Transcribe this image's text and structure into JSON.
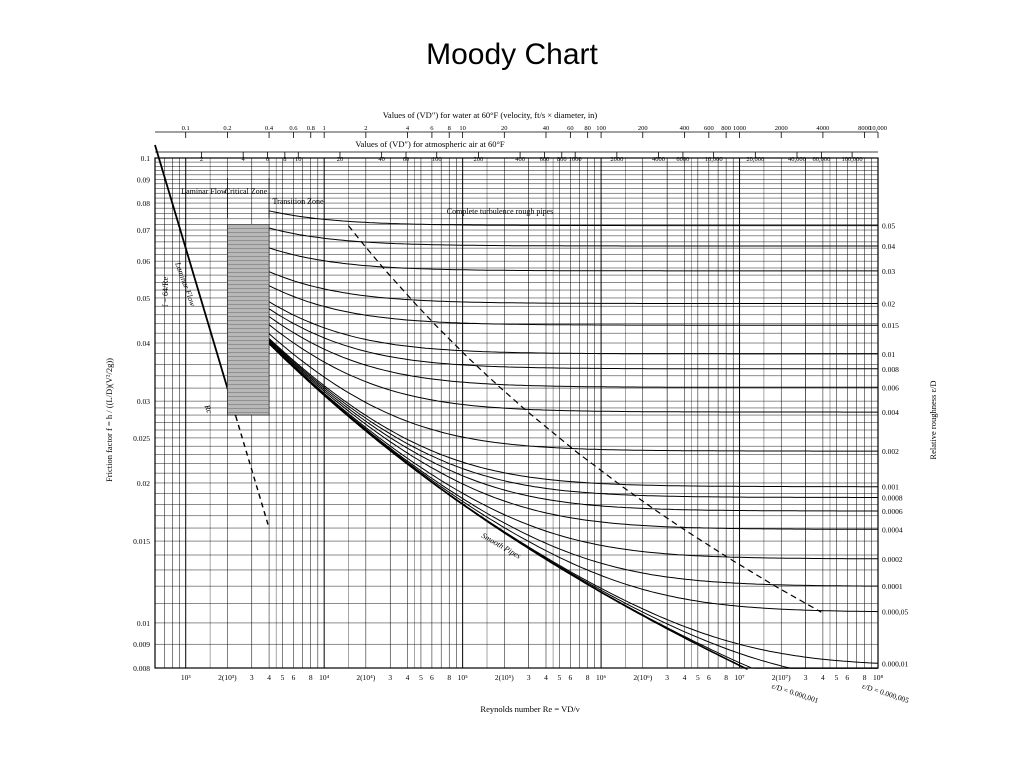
{
  "slide": {
    "title": "Moody Chart"
  },
  "chart_data": {
    "type": "line",
    "title": "",
    "xscale": "log",
    "yscale": "log",
    "xlim": [
      600,
      100000000
    ],
    "ylim": [
      0.008,
      0.1
    ],
    "grid": true,
    "xlabel": "Reynolds number Re = VD/ν",
    "ylabel": "Friction factor f = h / ((L/D)(V²/2g))",
    "right_label": "Relative roughness ε/D",
    "top_axis_water_label": "Values of (VD″) for water at 60°F (velocity, ft/s × diameter, in)",
    "top_axis_air_label": "Values of (VD″) for atmospheric air at 60°F",
    "top_water_ticks": [
      {
        "label": "0.1",
        "re": 1000
      },
      {
        "label": "0.2",
        "re": 2000
      },
      {
        "label": "0.4",
        "re": 4000
      },
      {
        "label": "0.6",
        "re": 6000
      },
      {
        "label": "0.8",
        "re": 8000
      },
      {
        "label": "1",
        "re": 10000
      },
      {
        "label": "2",
        "re": 20000
      },
      {
        "label": "4",
        "re": 40000
      },
      {
        "label": "6",
        "re": 60000
      },
      {
        "label": "8",
        "re": 80000
      },
      {
        "label": "10",
        "re": 100000
      },
      {
        "label": "20",
        "re": 200000
      },
      {
        "label": "40",
        "re": 400000
      },
      {
        "label": "60",
        "re": 600000
      },
      {
        "label": "80",
        "re": 800000
      },
      {
        "label": "100",
        "re": 1000000
      },
      {
        "label": "200",
        "re": 2000000
      },
      {
        "label": "400",
        "re": 4000000
      },
      {
        "label": "600",
        "re": 6000000
      },
      {
        "label": "800",
        "re": 8000000
      },
      {
        "label": "1000",
        "re": 10000000
      },
      {
        "label": "2000",
        "re": 20000000
      },
      {
        "label": "4000",
        "re": 40000000
      },
      {
        "label": "8000",
        "re": 80000000
      },
      {
        "label": "10,000",
        "re": 100000000
      }
    ],
    "top_air_ticks": [
      {
        "label": "2",
        "re": 1300
      },
      {
        "label": "4",
        "re": 2600
      },
      {
        "label": "6",
        "re": 3900
      },
      {
        "label": "8",
        "re": 5200
      },
      {
        "label": "10",
        "re": 6500
      },
      {
        "label": "20",
        "re": 13000
      },
      {
        "label": "40",
        "re": 26000
      },
      {
        "label": "60",
        "re": 39000
      },
      {
        "label": "100",
        "re": 65000
      },
      {
        "label": "200",
        "re": 130000
      },
      {
        "label": "400",
        "re": 260000
      },
      {
        "label": "600",
        "re": 390000
      },
      {
        "label": "800",
        "re": 520000
      },
      {
        "label": "1000",
        "re": 650000
      },
      {
        "label": "2000",
        "re": 1300000
      },
      {
        "label": "4000",
        "re": 2600000
      },
      {
        "label": "6000",
        "re": 3900000
      },
      {
        "label": "10,000",
        "re": 6500000
      },
      {
        "label": "20,000",
        "re": 13000000
      },
      {
        "label": "40,000",
        "re": 26000000
      },
      {
        "label": "60,000",
        "re": 39000000
      },
      {
        "label": "100,000",
        "re": 65000000
      }
    ],
    "x_tick_labels": [
      {
        "label": "10³",
        "re": 1000
      },
      {
        "label": "2(10³)",
        "re": 2000
      },
      {
        "label": "3",
        "re": 3000
      },
      {
        "label": "4",
        "re": 4000
      },
      {
        "label": "5",
        "re": 5000
      },
      {
        "label": "6",
        "re": 6000
      },
      {
        "label": "8",
        "re": 8000
      },
      {
        "label": "10⁴",
        "re": 10000
      },
      {
        "label": "2(10⁴)",
        "re": 20000
      },
      {
        "label": "3",
        "re": 30000
      },
      {
        "label": "4",
        "re": 40000
      },
      {
        "label": "5",
        "re": 50000
      },
      {
        "label": "6",
        "re": 60000
      },
      {
        "label": "8",
        "re": 80000
      },
      {
        "label": "10⁵",
        "re": 100000
      },
      {
        "label": "2(10⁵)",
        "re": 200000
      },
      {
        "label": "3",
        "re": 300000
      },
      {
        "label": "4",
        "re": 400000
      },
      {
        "label": "5",
        "re": 500000
      },
      {
        "label": "6",
        "re": 600000
      },
      {
        "label": "8",
        "re": 800000
      },
      {
        "label": "10⁶",
        "re": 1000000
      },
      {
        "label": "2(10⁶)",
        "re": 2000000
      },
      {
        "label": "3",
        "re": 3000000
      },
      {
        "label": "4",
        "re": 4000000
      },
      {
        "label": "5",
        "re": 5000000
      },
      {
        "label": "6",
        "re": 6000000
      },
      {
        "label": "8",
        "re": 8000000
      },
      {
        "label": "10⁷",
        "re": 10000000
      },
      {
        "label": "2(10⁷)",
        "re": 20000000
      },
      {
        "label": "3",
        "re": 30000000
      },
      {
        "label": "4",
        "re": 40000000
      },
      {
        "label": "5",
        "re": 50000000
      },
      {
        "label": "6",
        "re": 60000000
      },
      {
        "label": "8",
        "re": 80000000
      },
      {
        "label": "10⁸",
        "re": 100000000
      }
    ],
    "y_tick_labels": [
      {
        "label": "0.1",
        "f": 0.1
      },
      {
        "label": "0.09",
        "f": 0.09
      },
      {
        "label": "0.08",
        "f": 0.08
      },
      {
        "label": "0.07",
        "f": 0.07
      },
      {
        "label": "0.06",
        "f": 0.06
      },
      {
        "label": "0.05",
        "f": 0.05
      },
      {
        "label": "0.04",
        "f": 0.04
      },
      {
        "label": "0.03",
        "f": 0.03
      },
      {
        "label": "0.025",
        "f": 0.025
      },
      {
        "label": "0.02",
        "f": 0.02
      },
      {
        "label": "0.015",
        "f": 0.015
      },
      {
        "label": "0.01",
        "f": 0.01
      },
      {
        "label": "0.009",
        "f": 0.009
      },
      {
        "label": "0.008",
        "f": 0.008
      }
    ],
    "relative_roughness": [
      "0.05",
      "0.04",
      "0.03",
      "0.02",
      "0.015",
      "0.01",
      "0.008",
      "0.006",
      "0.004",
      "0.002",
      "0.001",
      "0.0008",
      "0.0006",
      "0.0004",
      "0.0002",
      "0.0001",
      "0.000,05",
      "0.000,01"
    ],
    "roughness_values": [
      0.05,
      0.04,
      0.03,
      0.02,
      0.015,
      0.01,
      0.008,
      0.006,
      0.004,
      0.002,
      0.001,
      0.0008,
      0.0006,
      0.0004,
      0.0002,
      0.0001,
      5e-05,
      1e-05,
      5e-06,
      1e-06
    ],
    "bottom_roughness_labels": [
      {
        "label": "ε/D = 0.000,001",
        "re": 20000000,
        "eps": 1e-06
      },
      {
        "label": "ε/D = 0.000,005",
        "re": 90000000,
        "eps": 5e-06
      }
    ],
    "laminar": {
      "f_times_re": 64,
      "re_range": [
        600,
        4000
      ],
      "label": "Laminar Flow",
      "formula": "f = 64/Re"
    },
    "region_labels": {
      "laminar": "Laminar Flow",
      "critical": "Critical Zone",
      "transition": "Transition Zone",
      "rough": "Complete turbulence rough pipes",
      "smooth": "Smooth Pipes",
      "rc": "Rc"
    }
  }
}
